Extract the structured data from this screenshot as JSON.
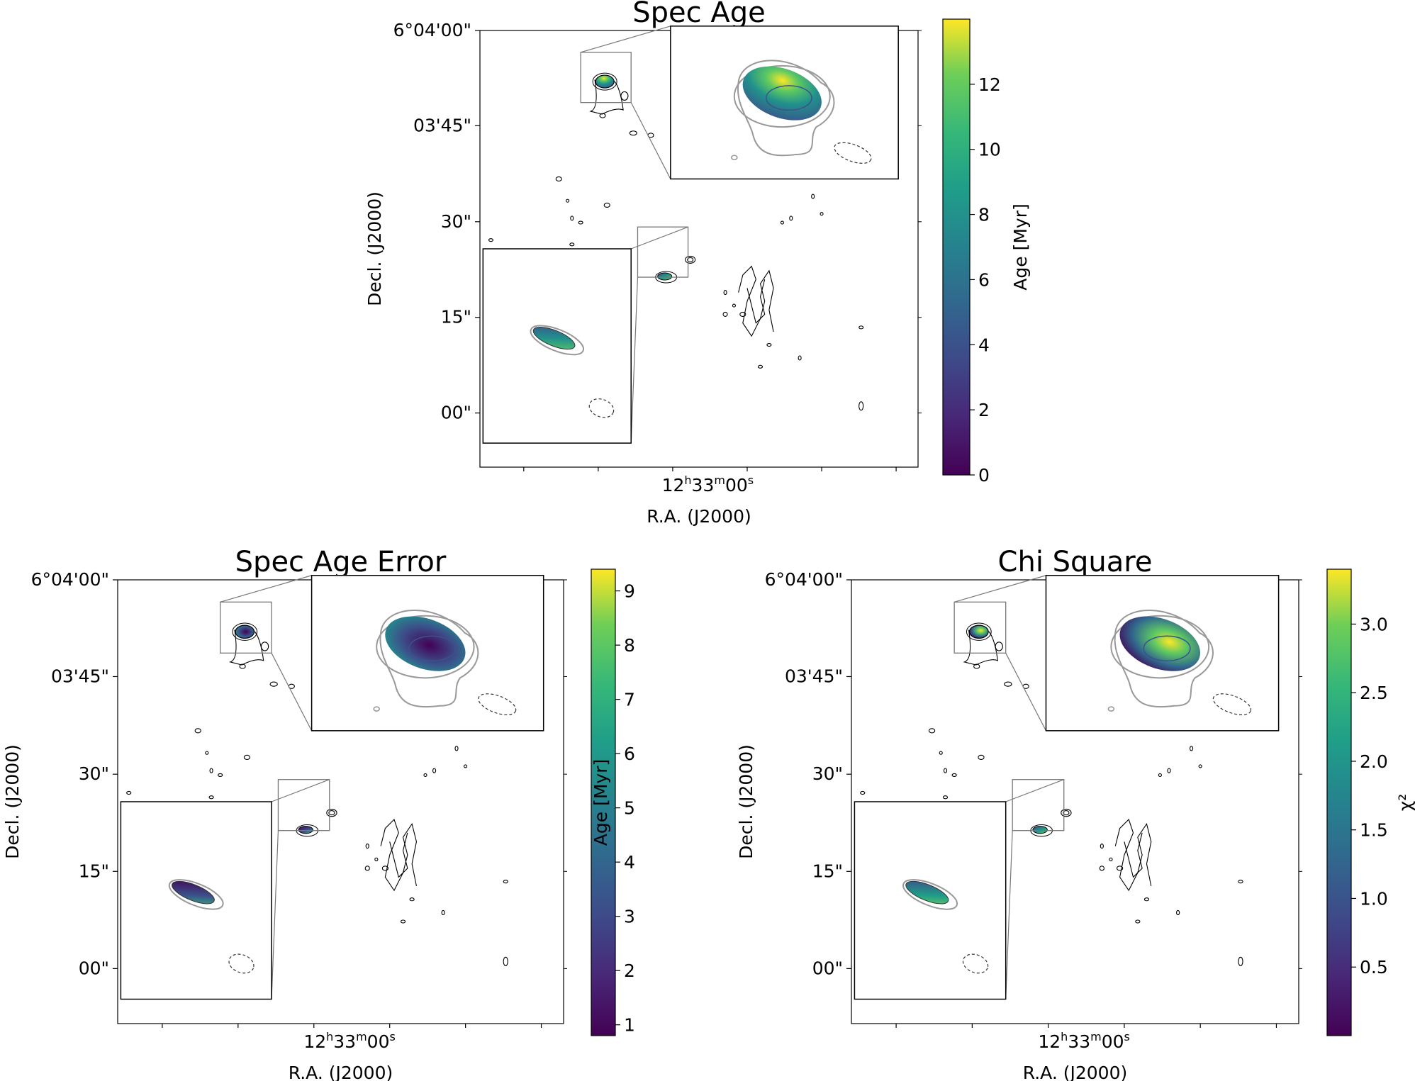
{
  "figure": {
    "panels": [
      {
        "id": "spec-age",
        "title": "Spec Age",
        "ra_tick": [
          "12",
          "h",
          "33",
          "m",
          "00",
          "s"
        ],
        "dec_ticks": [
          "6°04'00\"",
          "03'45\"",
          "30\"",
          "15\"",
          "00\""
        ],
        "xlabel": "R.A. (J2000)",
        "ylabel": "Decl. (J2000)",
        "colorbar": {
          "label": "Age [Myr]",
          "ticks": [
            "0",
            "2",
            "4",
            "6",
            "8",
            "10",
            "12"
          ],
          "range": [
            0,
            14
          ]
        },
        "map_style": "age"
      },
      {
        "id": "spec-age-error",
        "title": "Spec Age Error",
        "ra_tick": [
          "12",
          "h",
          "33",
          "m",
          "00",
          "s"
        ],
        "dec_ticks": [
          "6°04'00\"",
          "03'45\"",
          "30\"",
          "15\"",
          "00\""
        ],
        "xlabel": "R.A. (J2000)",
        "ylabel": "Decl. (J2000)",
        "colorbar": {
          "label": "Age [Myr]",
          "ticks": [
            "1",
            "2",
            "3",
            "4",
            "5",
            "6",
            "7",
            "8",
            "9"
          ],
          "range": [
            0.8,
            9.4
          ]
        },
        "map_style": "error"
      },
      {
        "id": "chi-square",
        "title": "Chi Square",
        "ra_tick": [
          "12",
          "h",
          "33",
          "m",
          "00",
          "s"
        ],
        "dec_ticks": [
          "6°04'00\"",
          "03'45\"",
          "30\"",
          "15\"",
          "00\""
        ],
        "xlabel": "R.A. (J2000)",
        "ylabel": "Decl. (J2000)",
        "colorbar": {
          "label": "χ²",
          "ticks": [
            "0.5",
            "1.0",
            "1.5",
            "2.0",
            "2.5",
            "3.0"
          ],
          "range": [
            0.0,
            3.4
          ]
        },
        "map_style": "chi"
      }
    ],
    "colors": {
      "viridis_dark": "#440154",
      "viridis_blue": "#3b528b",
      "viridis_teal": "#21918c",
      "viridis_green": "#5ec962",
      "viridis_yellow": "#fde725"
    }
  },
  "chart_data": [
    {
      "type": "heatmap",
      "title": "Spec Age",
      "xlabel": "R.A. (J2000)",
      "ylabel": "Decl. (J2000)",
      "colorbar_label": "Age [Myr]",
      "colorbar_range": [
        0,
        14
      ],
      "colormap": "viridis"
    },
    {
      "type": "heatmap",
      "title": "Spec Age Error",
      "xlabel": "R.A. (J2000)",
      "ylabel": "Decl. (J2000)",
      "colorbar_label": "Age [Myr]",
      "colorbar_range": [
        0.8,
        9.4
      ],
      "colormap": "viridis"
    },
    {
      "type": "heatmap",
      "title": "Chi Square",
      "xlabel": "R.A. (J2000)",
      "ylabel": "Decl. (J2000)",
      "colorbar_label": "χ²",
      "colorbar_range": [
        0.0,
        3.4
      ],
      "colormap": "viridis"
    }
  ]
}
